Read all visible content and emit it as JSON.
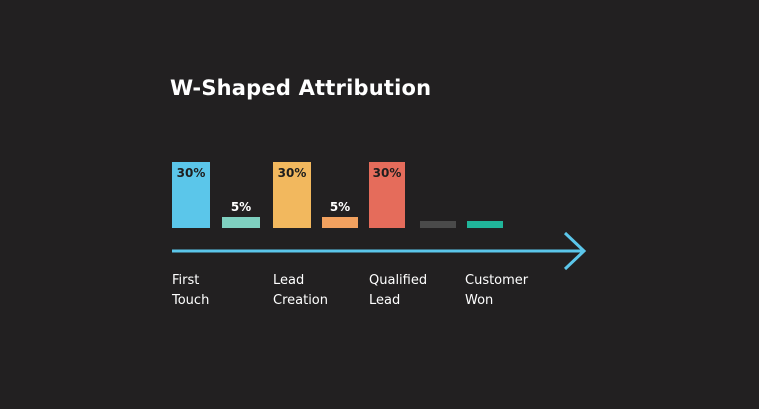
{
  "title": "W-Shaped Attribution",
  "chart_data": {
    "type": "bar",
    "title": "W-Shaped Attribution",
    "bars": [
      {
        "value": 30,
        "label": "30%",
        "color": "#5bc6ea"
      },
      {
        "value": 5,
        "label": "5%",
        "color": "#7fd0c0"
      },
      {
        "value": 30,
        "label": "30%",
        "color": "#f2b85e"
      },
      {
        "value": 5,
        "label": "5%",
        "color": "#f2a15f"
      },
      {
        "value": 30,
        "label": "30%",
        "color": "#e56c5b"
      },
      {
        "value": 0,
        "label": "",
        "color": "#4a4a4a"
      },
      {
        "value": 0,
        "label": "",
        "color": "#20b59a"
      }
    ],
    "stages": [
      {
        "line1": "First",
        "line2": "Touch"
      },
      {
        "line1": "Lead",
        "line2": "Creation"
      },
      {
        "line1": "Qualified",
        "line2": "Lead"
      },
      {
        "line1": "Customer",
        "line2": "Won"
      }
    ],
    "arrow_color": "#5bc6ea"
  }
}
